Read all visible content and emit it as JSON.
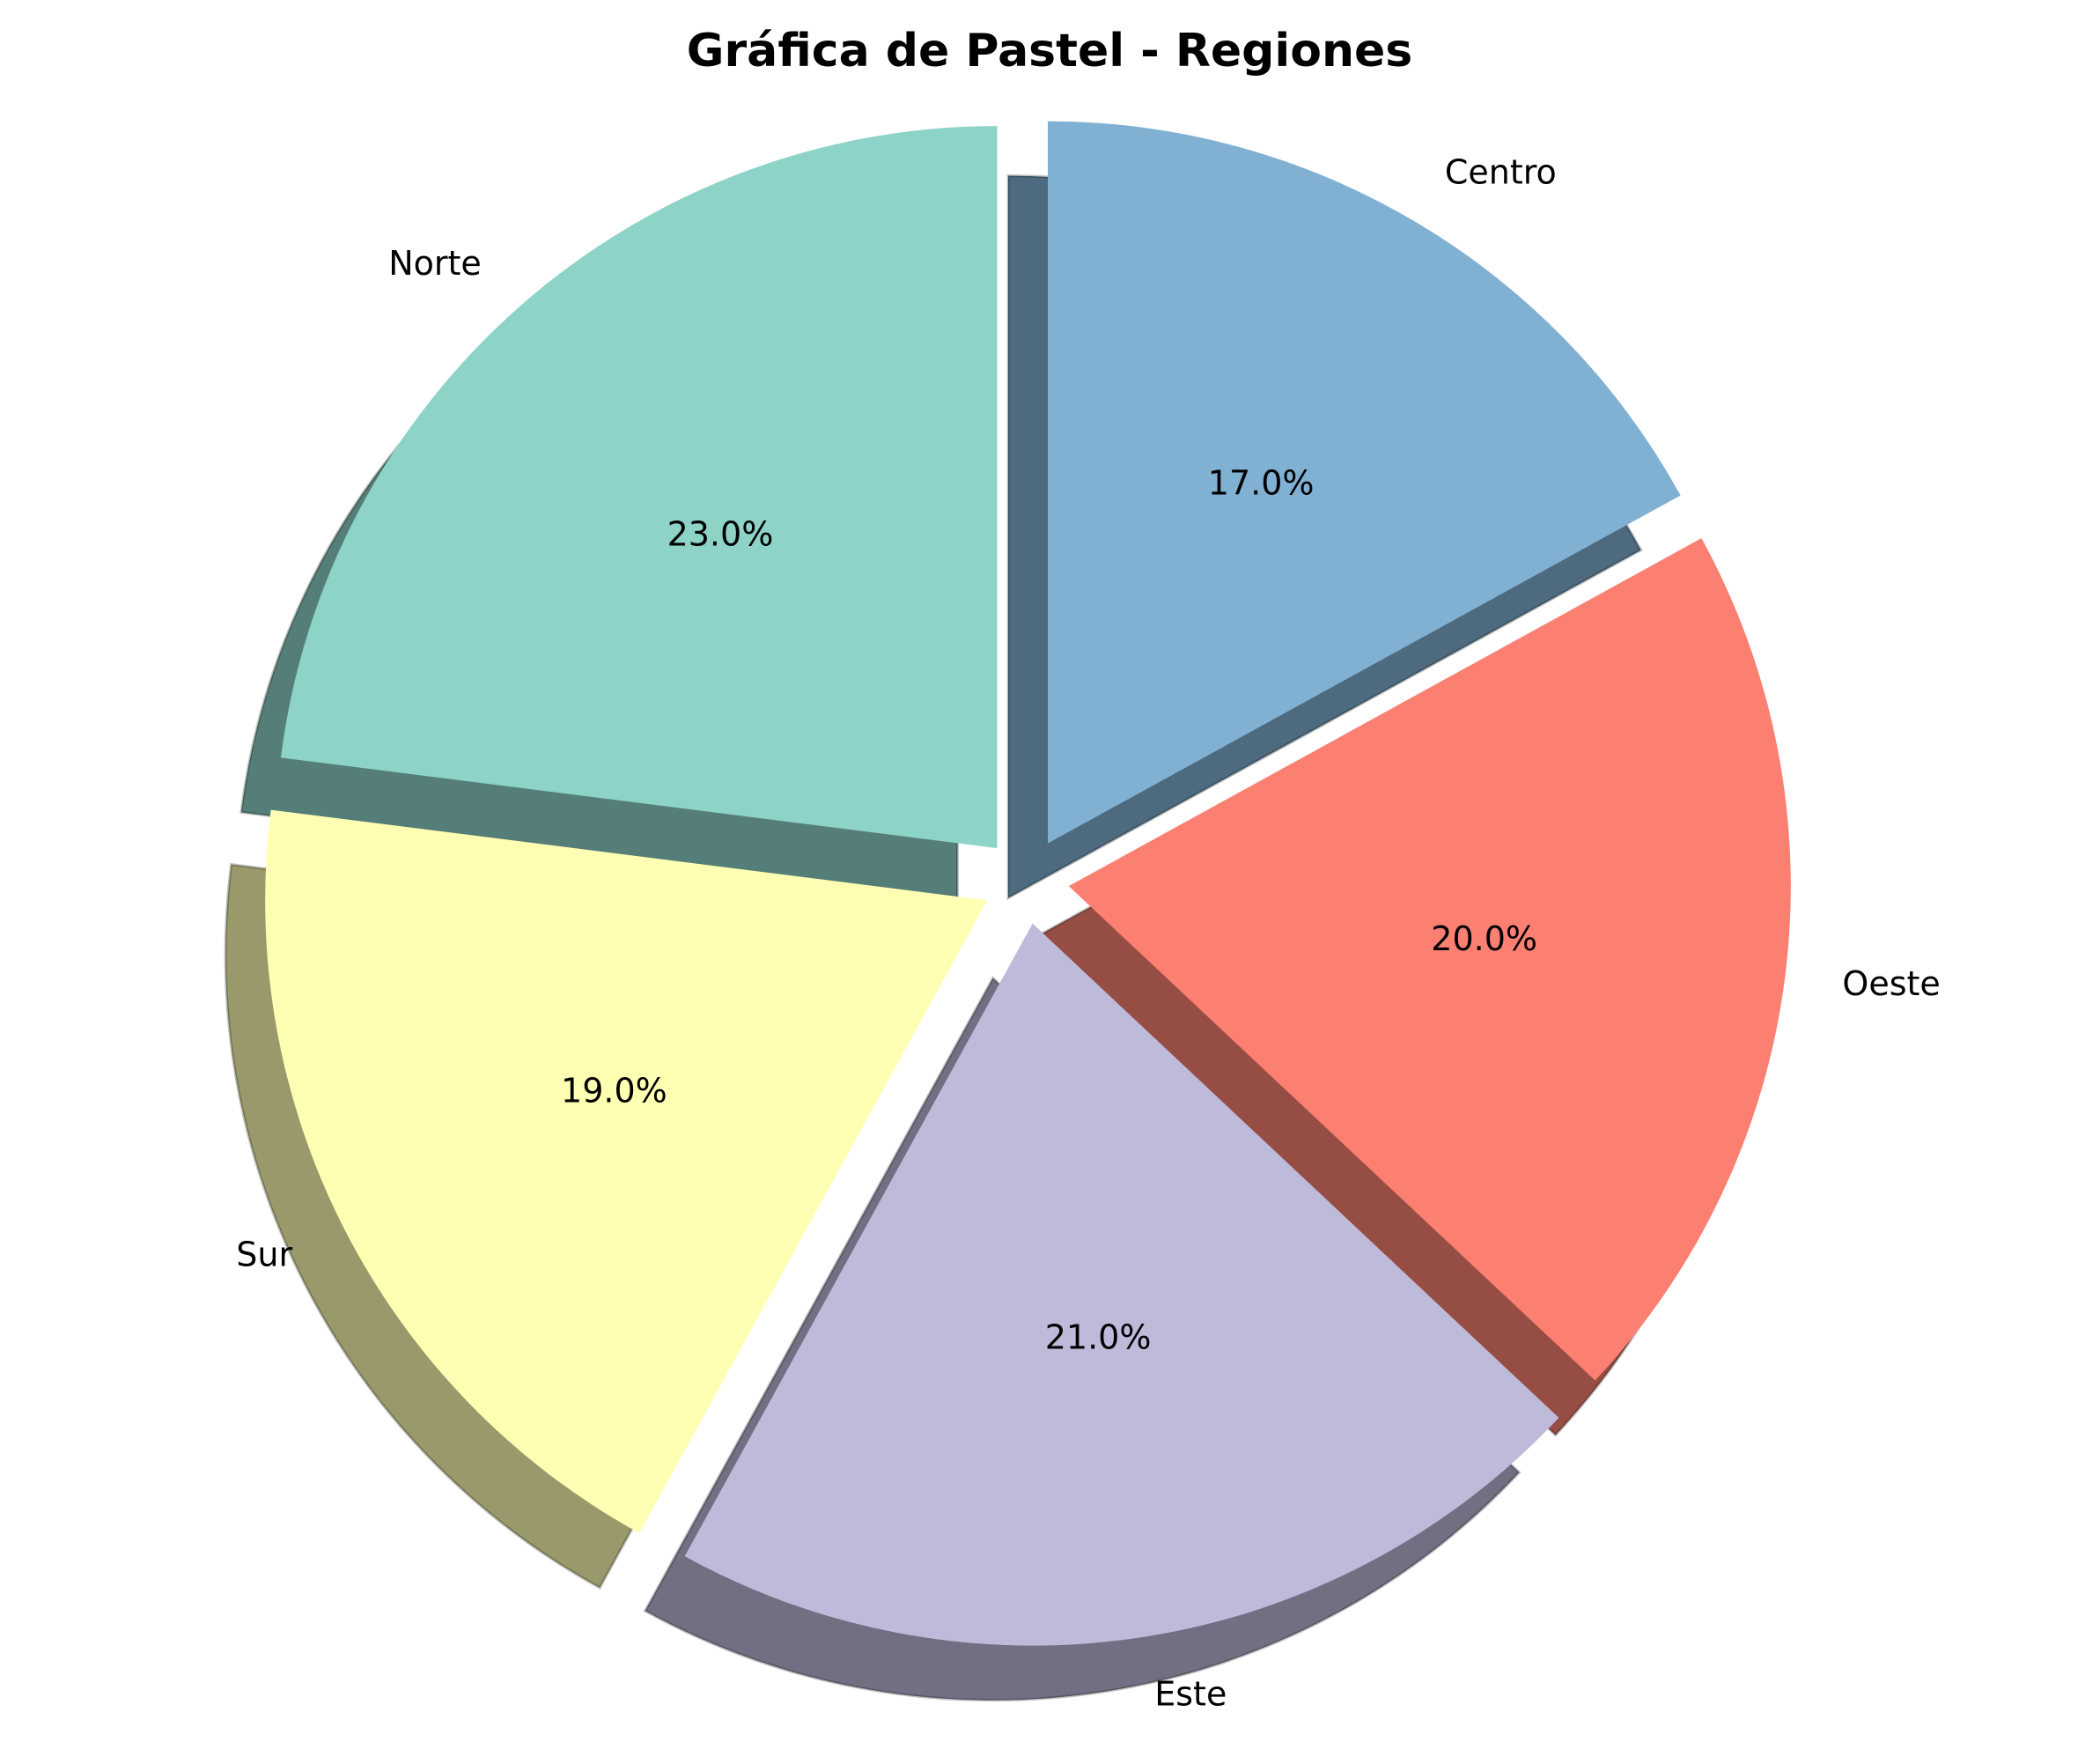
{
  "chart_data": {
    "type": "pie",
    "title": "Gráfica de Pastel - Regiones",
    "categories": [
      "Norte",
      "Sur",
      "Este",
      "Oeste",
      "Centro"
    ],
    "values": [
      23,
      19,
      21,
      20,
      17
    ],
    "percent_labels": [
      "23.0%",
      "19.0%",
      "21.0%",
      "20.0%",
      "17.0%"
    ],
    "colors": [
      "#8dd3c7",
      "#ffffb3",
      "#bebada",
      "#fb8072",
      "#80b1d3"
    ],
    "start_angle_deg": 90,
    "direction": "counterclockwise",
    "exploded": true,
    "shadow": true,
    "legend": "none"
  }
}
